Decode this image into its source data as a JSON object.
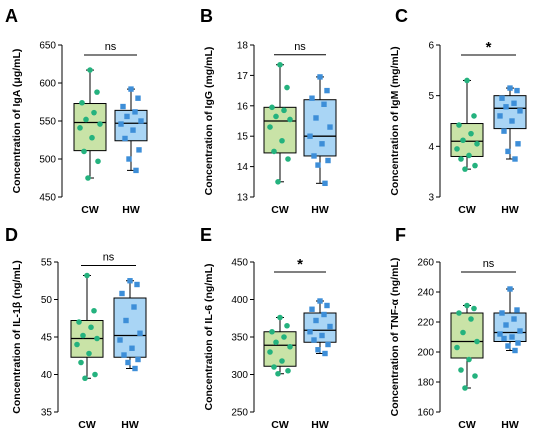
{
  "colors": {
    "cw_box": "#c9e3a7",
    "cw_point": "#24b27e",
    "hw_box": "#a9d5f5",
    "hw_point": "#3d8ed8"
  },
  "chart_data": [
    {
      "type": "box",
      "panel": "A",
      "ylabel": "Concentration of IgA (μg/mL)",
      "ylim": [
        450,
        650
      ],
      "yticks": [
        450,
        500,
        550,
        600,
        650
      ],
      "categories": [
        "CW",
        "HW"
      ],
      "significance": "ns",
      "boxes": [
        {
          "name": "CW",
          "min": 475,
          "q1": 511,
          "median": 548,
          "q3": 573,
          "max": 617,
          "points": [
            617,
            588,
            574,
            561,
            552,
            546,
            541,
            528,
            510,
            497,
            475
          ]
        },
        {
          "name": "HW",
          "min": 485,
          "q1": 524,
          "median": 547,
          "q3": 564,
          "max": 592,
          "points": [
            592,
            580,
            569,
            562,
            556,
            550,
            546,
            538,
            527,
            512,
            500,
            485
          ]
        }
      ]
    },
    {
      "type": "box",
      "panel": "B",
      "ylabel": "Concentration of IgG (mg/mL)",
      "ylim": [
        13,
        18
      ],
      "yticks": [
        13,
        14,
        15,
        16,
        17,
        18
      ],
      "categories": [
        "CW",
        "HW"
      ],
      "significance": "ns",
      "boxes": [
        {
          "name": "CW",
          "min": 13.5,
          "q1": 14.45,
          "median": 15.5,
          "q3": 15.95,
          "max": 17.35,
          "points": [
            17.35,
            16.6,
            15.95,
            15.85,
            15.65,
            15.55,
            15.3,
            14.85,
            14.5,
            14.25,
            13.5
          ]
        },
        {
          "name": "HW",
          "min": 13.45,
          "q1": 14.35,
          "median": 15.0,
          "q3": 16.2,
          "max": 16.95,
          "points": [
            16.95,
            16.5,
            16.25,
            16.05,
            15.6,
            15.3,
            15.0,
            14.75,
            14.35,
            14.2,
            14.05,
            13.45
          ]
        }
      ]
    },
    {
      "type": "box",
      "panel": "C",
      "ylabel": "Concentration of IgM (mg/mL)",
      "ylim": [
        3,
        6
      ],
      "yticks": [
        3,
        4,
        5,
        6
      ],
      "categories": [
        "CW",
        "HW"
      ],
      "significance": "*",
      "boxes": [
        {
          "name": "CW",
          "min": 3.55,
          "q1": 3.8,
          "median": 4.1,
          "q3": 4.45,
          "max": 5.3,
          "points": [
            5.3,
            4.6,
            4.42,
            4.25,
            4.12,
            4.05,
            3.95,
            3.82,
            3.75,
            3.62,
            3.55
          ]
        },
        {
          "name": "HW",
          "min": 3.75,
          "q1": 4.35,
          "median": 4.75,
          "q3": 5.0,
          "max": 5.15,
          "points": [
            5.15,
            5.1,
            4.95,
            4.85,
            4.78,
            4.7,
            4.6,
            4.5,
            4.3,
            4.05,
            3.9,
            3.75
          ]
        }
      ]
    },
    {
      "type": "box",
      "panel": "D",
      "ylabel": "Concentration of IL-1β (ng/mL)",
      "ylim": [
        35,
        55
      ],
      "yticks": [
        35,
        40,
        45,
        50,
        55
      ],
      "categories": [
        "CW",
        "HW"
      ],
      "significance": "ns",
      "boxes": [
        {
          "name": "CW",
          "min": 39.5,
          "q1": 42.3,
          "median": 44.8,
          "q3": 47.2,
          "max": 53.2,
          "points": [
            53.2,
            48.5,
            47.0,
            46.3,
            45.2,
            44.8,
            44.0,
            42.8,
            41.6,
            40.0,
            39.5
          ]
        },
        {
          "name": "HW",
          "min": 40.8,
          "q1": 42.3,
          "median": 45.2,
          "q3": 50.2,
          "max": 52.5,
          "points": [
            52.5,
            52.0,
            50.8,
            49.0,
            47.2,
            45.5,
            44.6,
            43.5,
            42.6,
            42.0,
            41.6,
            40.8
          ]
        }
      ]
    },
    {
      "type": "box",
      "panel": "E",
      "ylabel": "Concentration of IL-6 (ng/mL)",
      "ylim": [
        250,
        450
      ],
      "yticks": [
        250,
        300,
        350,
        400,
        450
      ],
      "categories": [
        "CW",
        "HW"
      ],
      "significance": "*",
      "boxes": [
        {
          "name": "CW",
          "min": 301,
          "q1": 311,
          "median": 339,
          "q3": 357,
          "max": 376,
          "points": [
            376,
            365,
            357,
            350,
            343,
            337,
            330,
            318,
            310,
            305,
            301
          ]
        },
        {
          "name": "HW",
          "min": 328,
          "q1": 343,
          "median": 359,
          "q3": 382,
          "max": 398,
          "points": [
            398,
            392,
            387,
            380,
            372,
            364,
            357,
            352,
            346,
            340,
            333,
            328
          ]
        }
      ]
    },
    {
      "type": "box",
      "panel": "F",
      "ylabel": "Concentration of TNF-α (ng/mL)",
      "ylim": [
        160,
        260
      ],
      "yticks": [
        160,
        180,
        200,
        220,
        240,
        260
      ],
      "categories": [
        "CW",
        "HW"
      ],
      "significance": "ns",
      "boxes": [
        {
          "name": "CW",
          "min": 176,
          "q1": 196,
          "median": 207,
          "q3": 226,
          "max": 231,
          "points": [
            231,
            229,
            226,
            222,
            213,
            207,
            203,
            195,
            188,
            184,
            176
          ]
        },
        {
          "name": "HW",
          "min": 201,
          "q1": 207,
          "median": 213,
          "q3": 226,
          "max": 242,
          "points": [
            242,
            228,
            226,
            222,
            218,
            214,
            212,
            210,
            209,
            206,
            204,
            201
          ]
        }
      ]
    }
  ]
}
